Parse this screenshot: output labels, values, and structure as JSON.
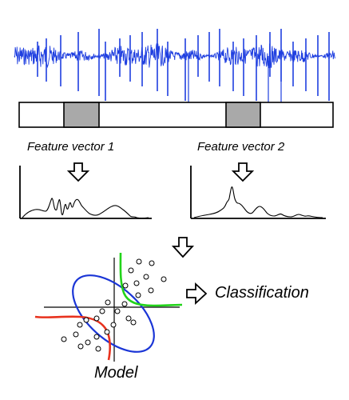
{
  "labels": {
    "feature_vector_1": "Feature vector 1",
    "feature_vector_2": "Feature vector 2",
    "classification": "Classification",
    "model": "Model"
  },
  "colors": {
    "signal": "#1f3fe0",
    "window_fill": "#a9a9a9",
    "ellipse": "#1a35d6",
    "boundary_green": "#22d41a",
    "boundary_red": "#e8321e",
    "ink": "#000000"
  },
  "icons": {
    "down_arrow": "hollow-down-arrow-icon",
    "right_arrow": "hollow-right-arrow-icon"
  }
}
